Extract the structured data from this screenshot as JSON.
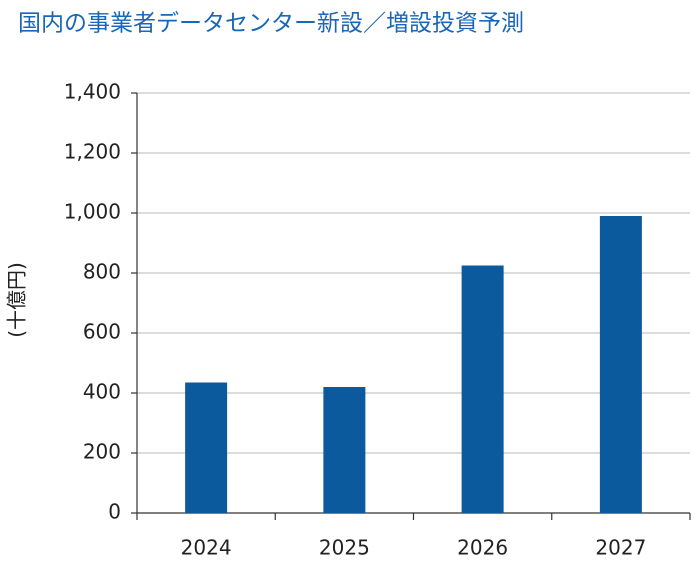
{
  "chart_data": {
    "type": "bar",
    "title": "国内の事業者データセンター新設／増設投資予測",
    "y_label": "(十億円)",
    "categories": [
      "2024",
      "2025",
      "2026",
      "2027"
    ],
    "values": [
      435,
      420,
      825,
      990
    ],
    "color": "#0b5a9e",
    "ylim": [
      0,
      1400
    ],
    "yticks": [
      0,
      200,
      400,
      600,
      800,
      {
        "value": 1000,
        "label": "1,000"
      },
      {
        "value": 1200,
        "label": "1,200"
      },
      {
        "value": 1400,
        "label": "1,400"
      }
    ],
    "grid": true
  }
}
